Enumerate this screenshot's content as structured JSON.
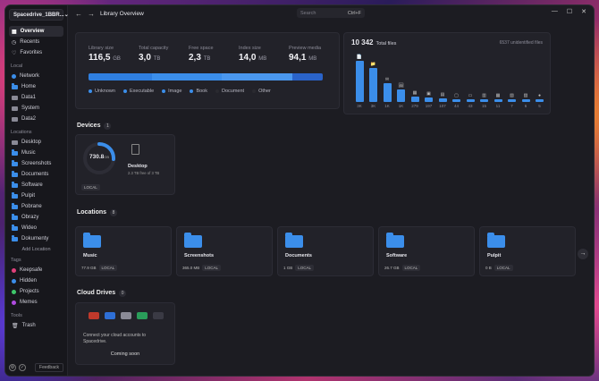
{
  "sidebar": {
    "library_name": "Spacedrive_1BBR...",
    "nav": [
      {
        "label": "Overview",
        "icon": "grid-icon",
        "active": true
      },
      {
        "label": "Recents",
        "icon": "clock-icon"
      },
      {
        "label": "Favorites",
        "icon": "heart-icon"
      }
    ],
    "local_label": "Local",
    "local": [
      {
        "label": "Network",
        "color": "#3b8eea"
      },
      {
        "label": "Home",
        "color": "#3b8eea"
      },
      {
        "label": "Data1",
        "color": "#8a8a96"
      },
      {
        "label": "System",
        "color": "#8a8a96"
      },
      {
        "label": "Data2",
        "color": "#8a8a96"
      }
    ],
    "locations_label": "Locations",
    "locations": [
      "Desktop",
      "Music",
      "Screenshots",
      "Documents",
      "Software",
      "Pulpit",
      "Pobrane",
      "Obrazy",
      "Wideo",
      "Dokumenty"
    ],
    "add_location": "Add Location",
    "tags_label": "Tags",
    "tags": [
      {
        "label": "Keepsafe",
        "color": "#e0407a"
      },
      {
        "label": "Hidden",
        "color": "#3b8eea"
      },
      {
        "label": "Projects",
        "color": "#3ec76a"
      },
      {
        "label": "Memes",
        "color": "#b04be0"
      }
    ],
    "tools_label": "Tools",
    "tools": [
      "Trash"
    ],
    "feedback": "Feedback"
  },
  "topbar": {
    "title": "Library Overview",
    "search_placeholder": "Search",
    "search_shortcut": "Ctrl+F"
  },
  "stats": [
    {
      "label": "Library size",
      "value": "116,5",
      "unit": "GB"
    },
    {
      "label": "Total capacity",
      "value": "3,0",
      "unit": "TB"
    },
    {
      "label": "Free space",
      "value": "2,3",
      "unit": "TB"
    },
    {
      "label": "Index size",
      "value": "14,0",
      "unit": "MB"
    },
    {
      "label": "Preview media",
      "value": "94,1",
      "unit": "MB"
    }
  ],
  "storage_bar": [
    {
      "category": "Unknown",
      "color": "#2f7fe0",
      "fraction": 0.27
    },
    {
      "category": "Executable",
      "color": "#3b8eea",
      "fraction": 0.3
    },
    {
      "category": "Image",
      "color": "#4a97ee",
      "fraction": 0.3
    },
    {
      "category": "Book",
      "color": "#2a63c9",
      "fraction": 0.13
    }
  ],
  "legend": [
    {
      "label": "Unknown",
      "color": "#3b8eea"
    },
    {
      "label": "Executable",
      "color": "#3b8eea"
    },
    {
      "label": "Image",
      "color": "#3b8eea"
    },
    {
      "label": "Book",
      "color": "#3b8eea"
    },
    {
      "label": "Document",
      "color": "#2a2a30"
    },
    {
      "label": "Other",
      "color": "#2a2a30"
    }
  ],
  "files": {
    "total": "10 342",
    "total_label": "Total files",
    "unidentified": "6537 unidentified files",
    "columns": [
      {
        "count": "3K",
        "level": 1.0,
        "icon": "📄"
      },
      {
        "count": "3K",
        "level": 0.82,
        "icon": "📁"
      },
      {
        "count": "1K",
        "level": 0.45,
        "icon": "✉"
      },
      {
        "count": "1K",
        "level": 0.3,
        "icon": "🖼"
      },
      {
        "count": "279",
        "level": 0.13,
        "icon": "▦"
      },
      {
        "count": "197",
        "level": 0.1,
        "icon": "▣"
      },
      {
        "count": "107",
        "level": 0.08,
        "icon": "▤"
      },
      {
        "count": "44",
        "level": 0.05,
        "icon": "▢"
      },
      {
        "count": "43",
        "level": 0.05,
        "icon": "▭"
      },
      {
        "count": "15",
        "level": 0.04,
        "icon": "▥"
      },
      {
        "count": "11",
        "level": 0.04,
        "icon": "▦"
      },
      {
        "count": "7",
        "level": 0.03,
        "icon": "▧"
      },
      {
        "count": "6",
        "level": 0.03,
        "icon": "▨"
      },
      {
        "count": "5",
        "level": 0.03,
        "icon": "●"
      }
    ]
  },
  "devices": {
    "title": "Devices",
    "count": "1",
    "items": [
      {
        "name": "Desktop",
        "used": "730.8",
        "used_unit": "GB",
        "free": "2.3 TB free of 3 TB",
        "tag": "LOCAL",
        "ring_fraction": 0.26
      }
    ]
  },
  "locations": {
    "title": "Locations",
    "count": "8",
    "items": [
      {
        "name": "Music",
        "size": "77.9 GB",
        "tag": "LOCAL"
      },
      {
        "name": "Screenshots",
        "size": "365.0 MB",
        "tag": "LOCAL"
      },
      {
        "name": "Documents",
        "size": "1 GB",
        "tag": "LOCAL"
      },
      {
        "name": "Software",
        "size": "26.7 GB",
        "tag": "LOCAL"
      },
      {
        "name": "Pulpit",
        "size": "0 B",
        "tag": "LOCAL"
      }
    ]
  },
  "cloud": {
    "title": "Cloud Drives",
    "count": "0",
    "text": "Connect your cloud accounts to Spacedrive.",
    "coming_soon": "Coming soon"
  }
}
